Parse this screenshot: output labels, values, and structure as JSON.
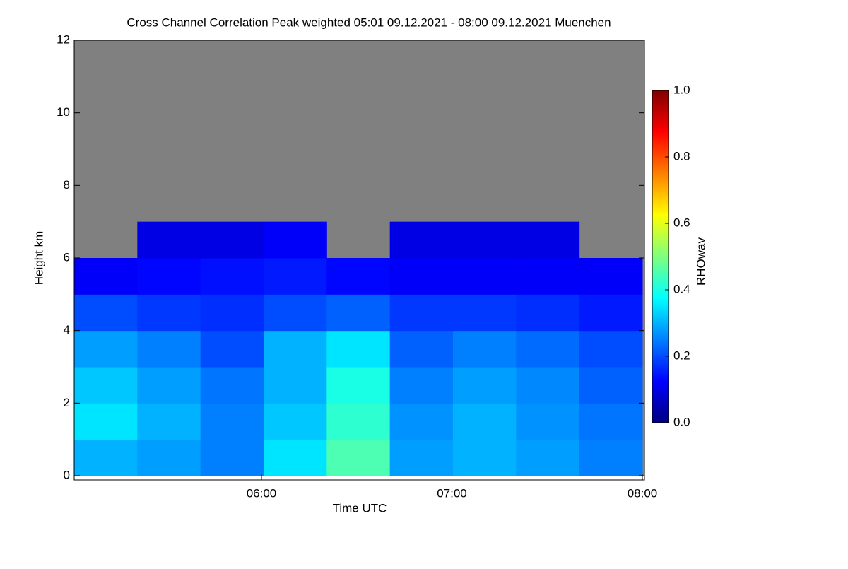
{
  "chart_data": {
    "type": "heatmap",
    "title": "Cross Channel Correlation Peak weighted   05:01 09.12.2021 - 08:00 09.12.2021 Muenchen",
    "x_label": "Time UTC",
    "y_label": "Height km",
    "colorbar_label": "RHOwav",
    "xlim": [
      "05:01",
      "08:00"
    ],
    "xticks": [
      "06:00",
      "07:00",
      "08:00"
    ],
    "ylim": [
      0,
      12
    ],
    "yticks": [
      0,
      2,
      4,
      6,
      8,
      10,
      12
    ],
    "clim": [
      0,
      1
    ],
    "cticks": [
      {
        "value": 0,
        "label": "0.0"
      },
      {
        "value": 0.2,
        "label": "0.2"
      },
      {
        "value": 0.4,
        "label": "0.4"
      },
      {
        "value": 0.6,
        "label": "0.6"
      },
      {
        "value": 0.8,
        "label": "0.8"
      },
      {
        "value": 1,
        "label": "1.0"
      }
    ],
    "colormap": [
      "#00007f",
      "#0000ff",
      "#007fff",
      "#00ffff",
      "#7fff7f",
      "#ffff00",
      "#ff7f00",
      "#ff0000",
      "#7f0000"
    ],
    "missing_color": "#808080",
    "z": [
      [
        0.3,
        0.28,
        0.25,
        0.35,
        0.45,
        0.28,
        0.3,
        0.28,
        0.25
      ],
      [
        0.35,
        0.3,
        0.25,
        0.32,
        0.42,
        0.27,
        0.3,
        0.27,
        0.24
      ],
      [
        0.32,
        0.28,
        0.24,
        0.3,
        0.4,
        0.25,
        0.28,
        0.26,
        0.22
      ],
      [
        0.28,
        0.25,
        0.2,
        0.3,
        0.35,
        0.22,
        0.25,
        0.23,
        0.2
      ],
      [
        0.2,
        0.18,
        0.17,
        0.2,
        0.22,
        0.18,
        0.18,
        0.17,
        0.15
      ],
      [
        0.12,
        0.13,
        0.14,
        0.15,
        0.13,
        0.12,
        0.12,
        0.12,
        0.12
      ],
      [
        null,
        0.1,
        0.1,
        0.12,
        null,
        0.1,
        0.1,
        0.1,
        null
      ],
      [
        null,
        null,
        null,
        null,
        null,
        null,
        null,
        null,
        null
      ],
      [
        null,
        null,
        null,
        null,
        null,
        null,
        null,
        null,
        null
      ],
      [
        null,
        null,
        null,
        null,
        null,
        null,
        null,
        null,
        null
      ],
      [
        null,
        null,
        null,
        null,
        null,
        null,
        null,
        null,
        null
      ],
      [
        null,
        null,
        null,
        null,
        null,
        null,
        null,
        null,
        null
      ]
    ]
  }
}
